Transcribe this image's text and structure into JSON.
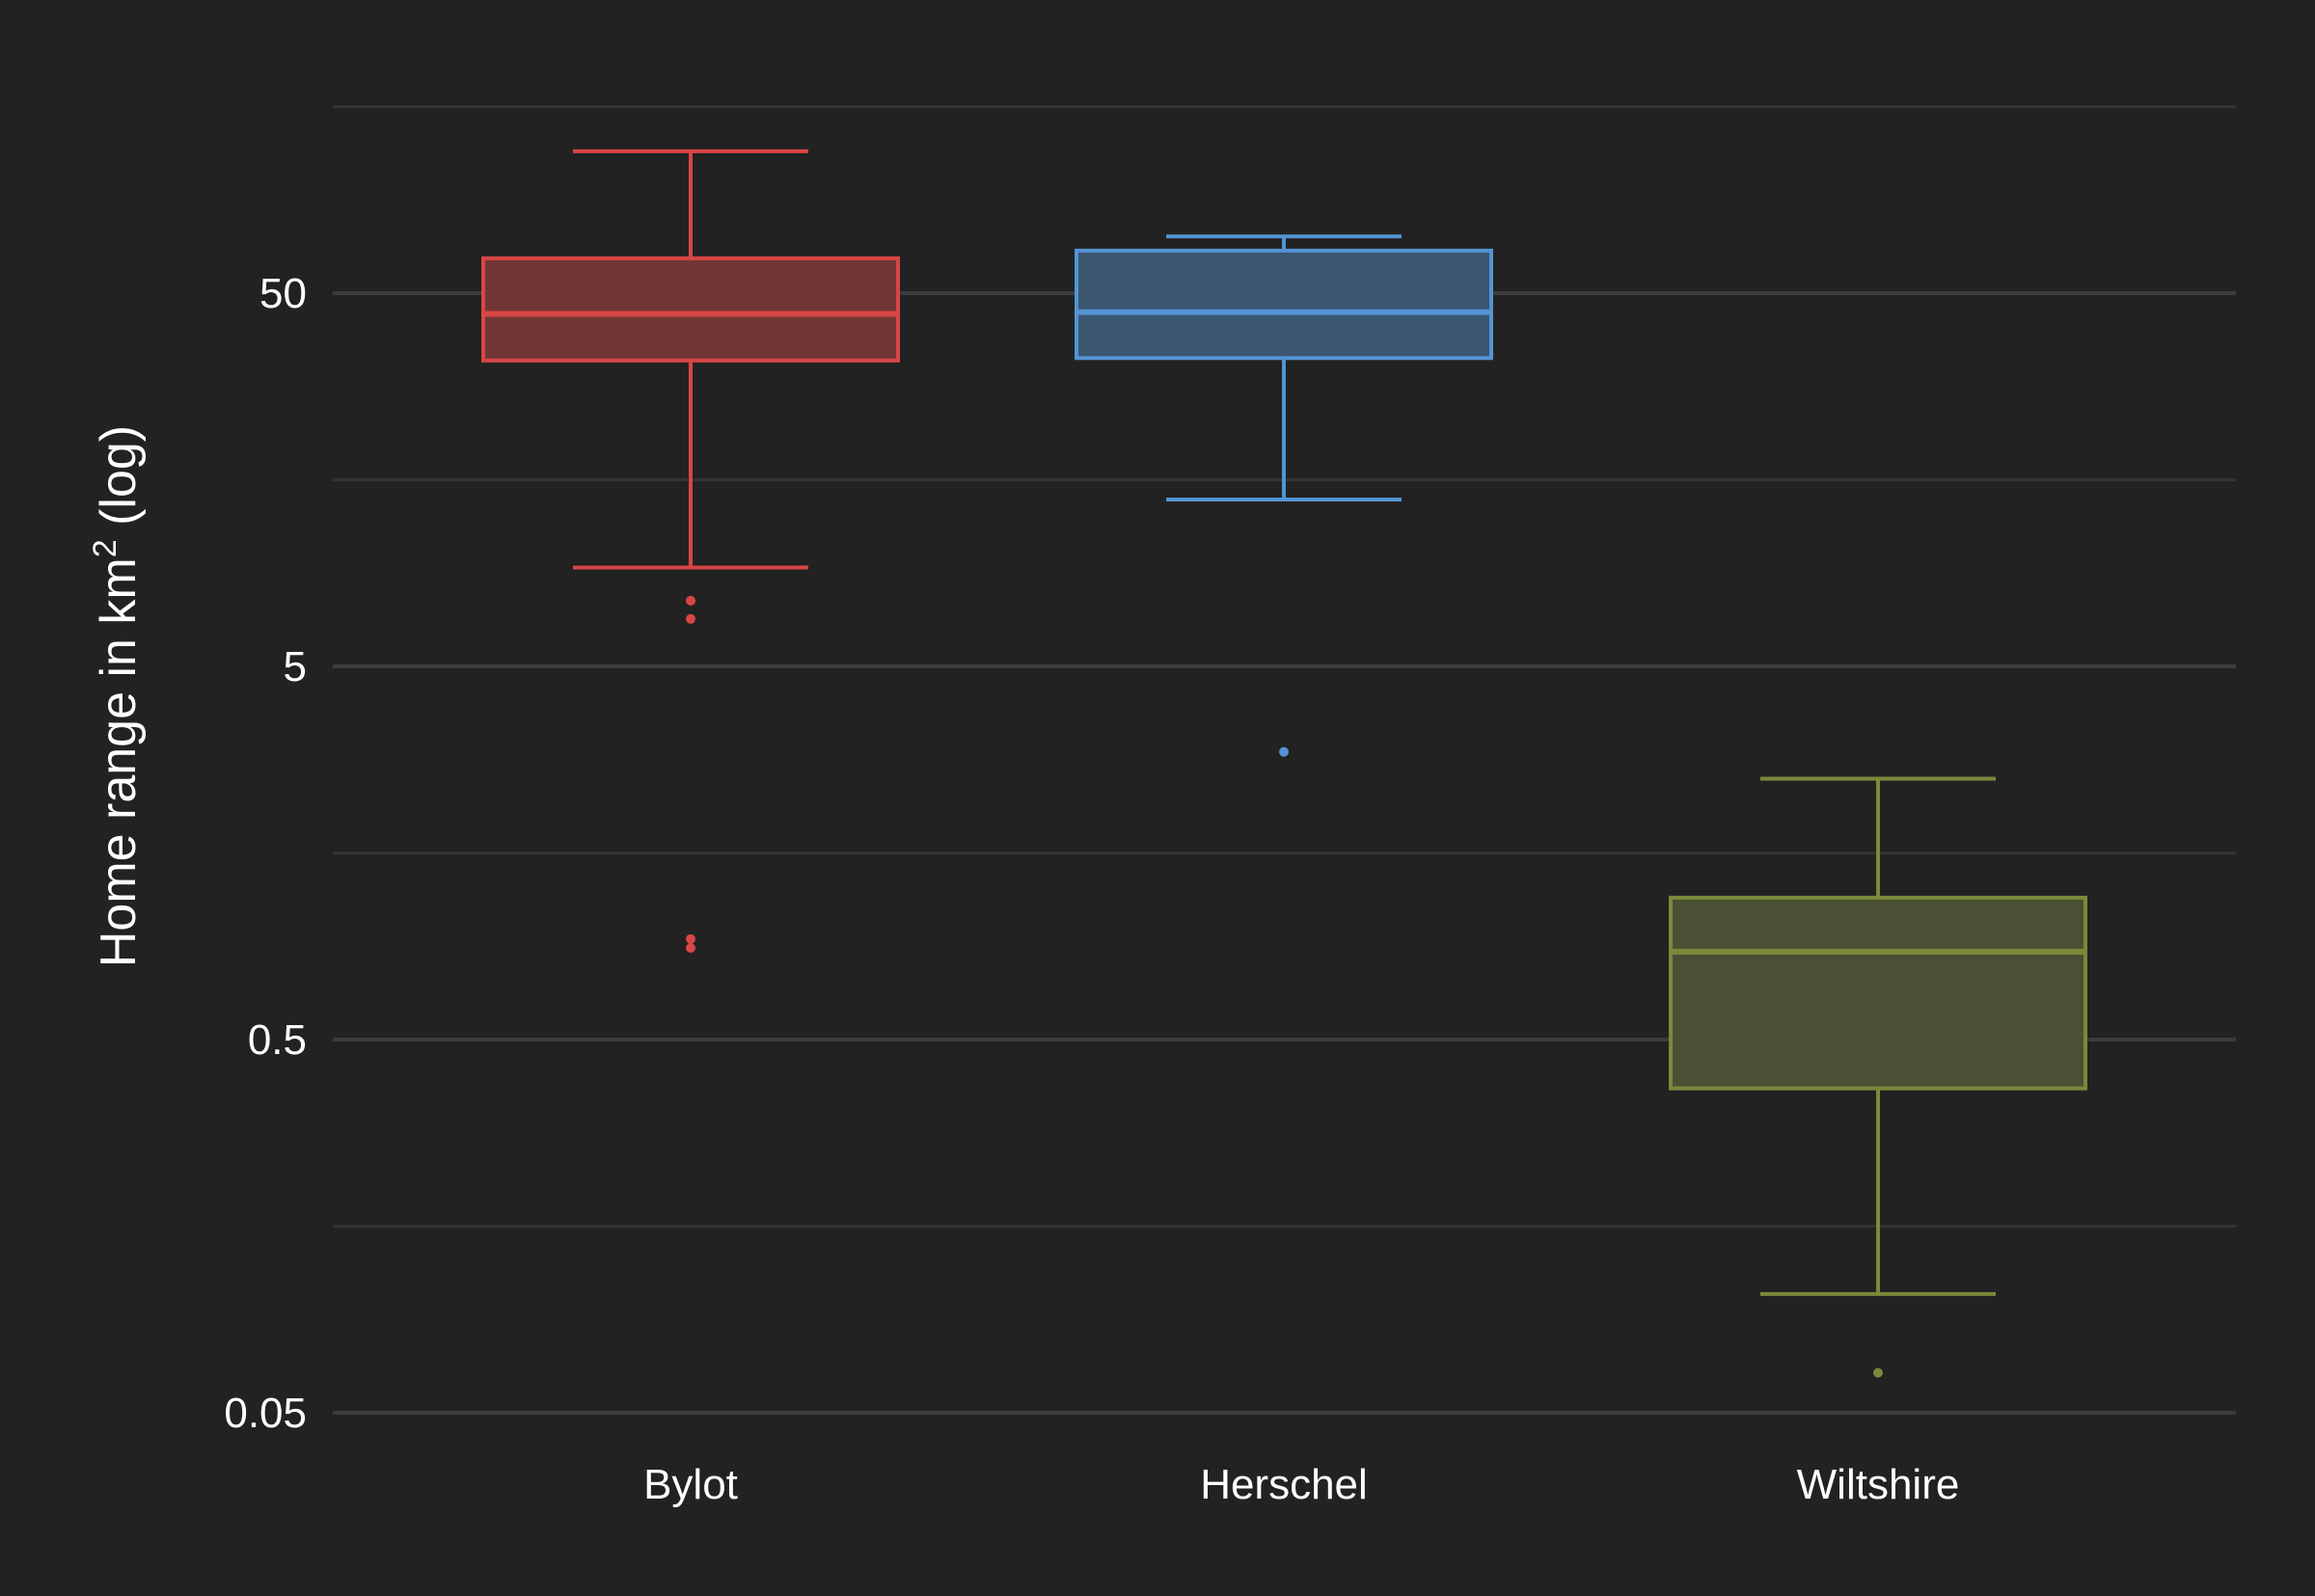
{
  "chart_data": {
    "type": "box",
    "title": "",
    "xlabel": "",
    "ylabel": {
      "prefix": "Home range in km",
      "superscript": "2",
      "suffix": " (log)"
    },
    "y_scale": "log",
    "ylim": [
      0.05,
      150
    ],
    "yticks": [
      0.05,
      0.5,
      5,
      50
    ],
    "ytick_labels": [
      "0.05",
      "0.5",
      "5",
      "50"
    ],
    "minor_gridlines": [
      0.158,
      1.58,
      15.8,
      158
    ],
    "grid": true,
    "legend": "none",
    "categories": [
      "Bylot",
      "Herschel",
      "Wiltshire"
    ],
    "boxes": [
      {
        "category": "Bylot",
        "color": "#d94545",
        "fill": "#733636",
        "whisker_low": 9.2,
        "q1": 33,
        "median": 44,
        "q3": 62,
        "whisker_high": 120,
        "outliers": [
          7.5,
          6.7,
          0.93,
          0.88
        ]
      },
      {
        "category": "Herschel",
        "color": "#5294d4",
        "fill": "#3b566f",
        "whisker_low": 14,
        "q1": 33.5,
        "median": 44.5,
        "q3": 65,
        "whisker_high": 71,
        "outliers": [
          2.95
        ]
      },
      {
        "category": "Wiltshire",
        "color": "#7a8a3a",
        "fill": "#4a5033",
        "whisker_low": 0.104,
        "q1": 0.37,
        "median": 0.86,
        "q3": 1.2,
        "whisker_high": 2.5,
        "outliers": [
          0.064
        ]
      }
    ]
  },
  "colors": {
    "background": "#222222",
    "major_grid": "#3c3c3c",
    "minor_grid": "#343434",
    "text": "#ffffff"
  }
}
